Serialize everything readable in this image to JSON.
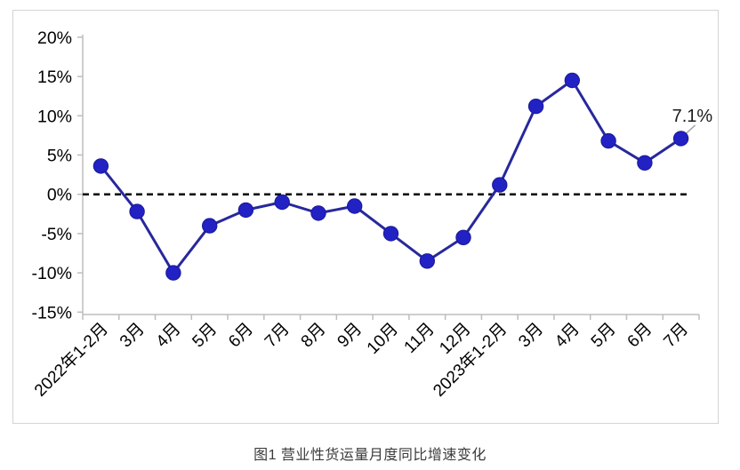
{
  "chart": {
    "caption": "图1 营业性货运量月度同比增速变化",
    "colors": {
      "line": "#28289c",
      "marker_fill": "#2121c4",
      "marker_stroke": "#1a1a96",
      "axis": "#bdbdbd",
      "tick": "#bdbdbd",
      "zero_line": "#000000",
      "leader": "#a6a6a6",
      "tick_text": "#000000",
      "annotation_text": "#1a1a1a"
    }
  },
  "chart_data": {
    "type": "line",
    "title": "图1 营业性货运量月度同比增速变化",
    "xlabel": "",
    "ylabel": "",
    "categories": [
      "2022年1-2月",
      "3月",
      "4月",
      "5月",
      "6月",
      "7月",
      "8月",
      "9月",
      "10月",
      "11月",
      "12月",
      "2023年1-2月",
      "3月",
      "4月",
      "5月",
      "6月",
      "7月"
    ],
    "series": [
      {
        "name": "营业性货运量月度同比增速",
        "values": [
          3.6,
          -2.2,
          -10.0,
          -4.0,
          -2.0,
          -1.0,
          -2.4,
          -1.5,
          -5.0,
          -8.5,
          -5.5,
          1.2,
          11.2,
          14.5,
          6.8,
          4.0,
          7.1
        ]
      }
    ],
    "ylim": [
      -15,
      20
    ],
    "ytick_step": 5,
    "ytick_labels": [
      "20%",
      "15%",
      "10%",
      "5%",
      "0%",
      "-5%",
      "-10%",
      "-15%"
    ],
    "grid": false,
    "legend": "none",
    "zero_baseline": "dashed",
    "annotation": {
      "point_index": 16,
      "text": "7.1%"
    }
  }
}
